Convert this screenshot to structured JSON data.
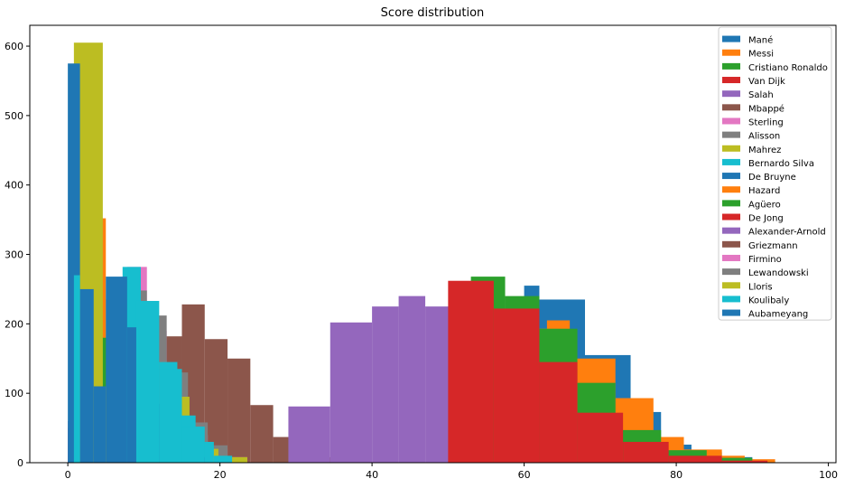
{
  "chart_data": {
    "type": "histogram",
    "title": "Score distribution",
    "xlabel": "",
    "ylabel": "",
    "xlim": [
      -5,
      101
    ],
    "ylim": [
      0,
      630
    ],
    "xticks": [
      0,
      20,
      40,
      60,
      80,
      100
    ],
    "yticks": [
      0,
      100,
      200,
      300,
      400,
      500,
      600
    ],
    "grid": false,
    "legend_position": "top-right",
    "series": [
      {
        "name": "Mané",
        "color": "#1f77b4",
        "edges": [
          0,
          4.6,
          9.2,
          13.8,
          18.4,
          23,
          27.6,
          32.2,
          36.8,
          41.4,
          46
        ],
        "counts": [
          575,
          268,
          195,
          105,
          45,
          15,
          6,
          3,
          1,
          1
        ]
      },
      {
        "name": "Messi",
        "color": "#ff7f0e",
        "edges": [
          0,
          2.5,
          5,
          7.5,
          10,
          12.5,
          15,
          17.5,
          20,
          22.5,
          25
        ],
        "counts": [
          120,
          352,
          235,
          130,
          68,
          25,
          12,
          5,
          2,
          1
        ]
      },
      {
        "name": "Cristiano Ronaldo",
        "color": "#2ca02c",
        "edges": [
          0,
          1.6,
          4.2,
          6.8,
          9.4,
          12,
          14.6,
          17.2,
          19.8,
          22.4,
          25
        ],
        "counts": [
          365,
          323,
          180,
          65,
          38,
          12,
          5,
          2,
          1,
          1
        ]
      },
      {
        "name": "Van Dijk",
        "color": "#d62728",
        "edges": [
          0,
          3.4,
          6.8,
          10.2,
          13.6,
          17,
          20.4,
          23.8,
          27.2,
          30.6,
          34
        ],
        "counts": [
          50,
          30,
          18,
          8,
          5,
          3,
          2,
          1,
          1,
          1
        ]
      },
      {
        "name": "Salah",
        "color": "#9467bd",
        "edges": [
          0,
          4.6,
          9.2,
          13.8,
          18.4,
          23,
          27.6,
          32.2,
          36.8,
          41.4,
          46
        ],
        "counts": [
          60,
          40,
          25,
          15,
          10,
          6,
          3,
          2,
          1,
          1
        ]
      },
      {
        "name": "Mbappé",
        "color": "#8c564b",
        "edges": [
          0,
          2.8,
          5.6,
          8.4,
          11.2,
          14,
          16.8,
          19.6,
          22.4,
          25.2,
          28
        ],
        "counts": [
          40,
          55,
          50,
          45,
          40,
          30,
          20,
          12,
          5,
          2
        ]
      },
      {
        "name": "Sterling",
        "color": "#e377c2",
        "edges": [
          0,
          2.6,
          5.2,
          7.8,
          10.4,
          13,
          15.8,
          18.4,
          21,
          23.6,
          26.2
        ],
        "counts": [
          50,
          120,
          200,
          282,
          150,
          80,
          40,
          20,
          8,
          3
        ]
      },
      {
        "name": "Alisson",
        "color": "#7f7f7f",
        "edges": [
          0,
          2.6,
          5.2,
          7.8,
          10.4,
          13,
          15.8,
          18.4,
          21,
          23.6,
          26.2
        ],
        "counts": [
          30,
          80,
          160,
          248,
          212,
          130,
          58,
          25,
          8,
          2
        ]
      },
      {
        "name": "Mahrez",
        "color": "#bcbd22",
        "edges": [
          0.8,
          4.6,
          8.4,
          12.2,
          16,
          19.8,
          23.6,
          27.4,
          31.2,
          35,
          38.8
        ],
        "counts": [
          605,
          110,
          50,
          25,
          20,
          8,
          4,
          2,
          1,
          1
        ]
      },
      {
        "name": "Bernardo Silva",
        "color": "#17becf",
        "edges": [
          0,
          2.4,
          4.8,
          7.2,
          9.6,
          12,
          14.4,
          16.8,
          19.2,
          21.6,
          24
        ],
        "counts": [
          60,
          150,
          230,
          282,
          233,
          145,
          68,
          30,
          10,
          3
        ]
      },
      {
        "name": "De Bruyne",
        "color": "#1f77b4",
        "edges": [
          1,
          2.7,
          4.4,
          6.1,
          7.8,
          9.5,
          11.2,
          12.9,
          14.6,
          16.3,
          18
        ],
        "counts": [
          130,
          110,
          268,
          195,
          145,
          85,
          45,
          20,
          8,
          2
        ]
      },
      {
        "name": "Hazard",
        "color": "#ff7f0e",
        "edges": [
          54,
          58.6,
          63.2,
          67.8,
          72.4,
          77,
          81.6,
          86.2,
          90.8,
          95.4,
          100
        ],
        "counts": [
          120,
          205,
          150,
          93,
          37,
          19,
          5,
          2,
          1,
          1
        ]
      },
      {
        "name": "Agüero",
        "color": "#2ca02c",
        "edges": [
          51.5,
          55.1,
          58.7,
          62.3,
          65.9,
          69.5,
          73.1,
          76.7,
          80.3,
          83.9,
          87.5
        ],
        "counts": [
          250,
          268,
          225,
          193,
          115,
          47,
          18,
          7,
          2,
          1
        ]
      },
      {
        "name": "De Jong",
        "color": "#d62728",
        "edges": [
          50,
          55.6,
          61.2,
          66.8,
          72.4,
          78,
          83.6,
          89.2,
          94.8,
          100.4,
          106
        ],
        "counts": [
          262,
          222,
          145,
          72,
          30,
          10,
          3,
          1,
          1,
          1
        ]
      },
      {
        "name": "Alexander-Arnold",
        "color": "#9467bd",
        "edges": [
          29,
          34.5,
          40,
          45.5,
          51,
          56.5,
          62,
          67.5,
          73,
          78.5,
          84
        ],
        "counts": [
          81,
          202,
          225,
          240,
          120,
          63,
          25,
          10,
          3,
          1
        ]
      },
      {
        "name": "Griezmann",
        "color": "#8c564b",
        "edges": [
          0,
          2.2,
          4.4,
          6.6,
          8.8,
          11,
          13.2,
          15.4,
          17.6,
          19.8,
          22
        ],
        "counts": [
          30,
          95,
          160,
          230,
          180,
          120,
          60,
          25,
          10,
          3
        ]
      },
      {
        "name": "Firmino",
        "color": "#e377c2",
        "edges": [
          0,
          2.2,
          4.4,
          6.6,
          8.8,
          11,
          13.2,
          15.4,
          17.6,
          19.8,
          22
        ],
        "counts": [
          40,
          120,
          190,
          250,
          180,
          110,
          55,
          22,
          8,
          2
        ]
      },
      {
        "name": "Lewandowski",
        "color": "#7f7f7f",
        "edges": [
          0,
          2.2,
          4.4,
          6.6,
          8.8,
          11,
          13.2,
          15.4,
          17.6,
          19.8,
          22
        ],
        "counts": [
          35,
          100,
          175,
          220,
          170,
          105,
          50,
          20,
          7,
          2
        ]
      },
      {
        "name": "Lloris",
        "color": "#bcbd22",
        "edges": [
          0,
          2.2,
          4.4,
          6.6,
          8.8,
          11,
          13.2,
          15.4,
          17.6,
          19.8,
          22
        ],
        "counts": [
          30,
          90,
          160,
          210,
          160,
          100,
          48,
          18,
          6,
          2
        ]
      },
      {
        "name": "Koulibaly",
        "color": "#17becf",
        "edges": [
          0.2,
          2.1,
          4,
          5.9,
          7.8,
          9.7,
          11.6,
          13.5,
          15.4,
          17.3,
          19.2
        ],
        "counts": [
          270,
          248,
          283,
          283,
          233,
          145,
          88,
          45,
          20,
          8
        ]
      },
      {
        "name": "Aubameyang",
        "color": "#1f77b4",
        "edges": [
          46,
          50.7,
          55.4,
          60.1,
          64.8,
          69.5,
          74.2,
          78.9,
          83.6,
          88.3,
          93
        ],
        "counts": [
          120,
          198,
          255,
          235,
          155,
          73,
          26,
          15,
          5,
          2
        ]
      }
    ],
    "draw_layers": [
      {
        "name": "Mbappé",
        "color": "#8c564b",
        "edges": [
          3,
          6,
          9,
          12,
          15,
          18,
          21,
          24,
          27,
          30,
          33,
          36
        ],
        "counts": [
          35,
          60,
          110,
          182,
          228,
          178,
          150,
          83,
          37,
          18,
          8
        ]
      },
      {
        "name": "Alexander-Arnold",
        "color": "#9467bd",
        "edges": [
          29,
          34.5,
          40,
          43.5,
          47,
          51,
          56.5,
          62,
          67.5,
          73,
          78.5,
          84
        ],
        "counts": [
          81,
          202,
          225,
          240,
          225,
          120,
          63,
          25,
          10,
          3,
          1
        ]
      },
      {
        "name": "Aubameyang",
        "color": "#1f77b4",
        "edges": [
          57,
          60,
          62,
          68,
          74,
          78,
          82,
          86,
          90,
          93
        ],
        "counts": [
          175,
          255,
          235,
          155,
          73,
          26,
          15,
          8,
          2
        ]
      },
      {
        "name": "Hazard",
        "color": "#ff7f0e",
        "edges": [
          60,
          63,
          66,
          72,
          77,
          81,
          86,
          89,
          93
        ],
        "counts": [
          193,
          205,
          150,
          93,
          37,
          19,
          10,
          5
        ]
      },
      {
        "name": "Agüero",
        "color": "#2ca02c",
        "edges": [
          53,
          57.5,
          62,
          67,
          72,
          78,
          84,
          90
        ],
        "counts": [
          268,
          240,
          193,
          115,
          47,
          18,
          7
        ]
      },
      {
        "name": "De Jong",
        "color": "#d62728",
        "edges": [
          50,
          56,
          62,
          67,
          73,
          79,
          86,
          92
        ],
        "counts": [
          262,
          222,
          145,
          72,
          30,
          10,
          3
        ]
      },
      {
        "name": "Messi",
        "color": "#ff7f0e",
        "edges": [
          2.5,
          5,
          7.5,
          10,
          12.5,
          15,
          17.5,
          20,
          22.5
        ],
        "counts": [
          352,
          235,
          130,
          68,
          25,
          12,
          5,
          2
        ]
      },
      {
        "name": "Cristiano Ronaldo",
        "color": "#2ca02c",
        "edges": [
          1.6,
          4.2,
          6.8,
          9.4,
          12,
          14.6,
          17.2,
          19.8
        ],
        "counts": [
          323,
          180,
          65,
          38,
          12,
          5,
          2
        ]
      },
      {
        "name": "Van Dijk",
        "color": "#d62728",
        "edges": [
          0,
          3,
          6,
          9,
          12
        ],
        "counts": [
          50,
          30,
          18,
          8
        ]
      },
      {
        "name": "Salah",
        "color": "#9467bd",
        "edges": [
          0,
          3,
          6,
          9,
          12
        ],
        "counts": [
          60,
          40,
          25,
          15
        ]
      },
      {
        "name": "Sterling",
        "color": "#e377c2",
        "edges": [
          5.2,
          7.8,
          10.4,
          13,
          15.8,
          18.4,
          21,
          23.6
        ],
        "counts": [
          200,
          282,
          190,
          80,
          40,
          20,
          8
        ]
      },
      {
        "name": "Alisson",
        "color": "#7f7f7f",
        "edges": [
          7.8,
          10.4,
          13,
          15.8,
          18.4,
          21
        ],
        "counts": [
          248,
          212,
          130,
          58,
          25
        ]
      },
      {
        "name": "Mahrez",
        "color": "#bcbd22",
        "edges": [
          0.8,
          4.6,
          8.4,
          12.2,
          16,
          19.8,
          23.6
        ],
        "counts": [
          605,
          110,
          50,
          95,
          20,
          8
        ]
      },
      {
        "name": "Bernardo Silva",
        "color": "#17becf",
        "edges": [
          7.2,
          9.6,
          12,
          14.4,
          16.8,
          19.2,
          21.6
        ],
        "counts": [
          282,
          233,
          145,
          68,
          30,
          10
        ]
      },
      {
        "name": "De Bruyne",
        "color": "#1f77b4",
        "edges": [
          0,
          1.6,
          3.4,
          5,
          7.8,
          9.5,
          11.2,
          12.9,
          14.6,
          16.3,
          18
        ],
        "counts": [
          575,
          250,
          110,
          268,
          195,
          145,
          85,
          45,
          20,
          8
        ]
      },
      {
        "name": "Koulibaly",
        "color": "#17becf",
        "edges": [
          0.8,
          1.6
        ],
        "counts": [
          270
        ]
      },
      {
        "name": "Koulibaly",
        "color": "#17becf",
        "edges": [
          9,
          12
        ],
        "counts": [
          233
        ]
      },
      {
        "name": "Koulibaly",
        "color": "#17becf",
        "edges": [
          12,
          15
        ],
        "counts": [
          135
        ]
      },
      {
        "name": "Koulibaly",
        "color": "#17becf",
        "edges": [
          15,
          18
        ],
        "counts": [
          52
        ]
      }
    ]
  }
}
